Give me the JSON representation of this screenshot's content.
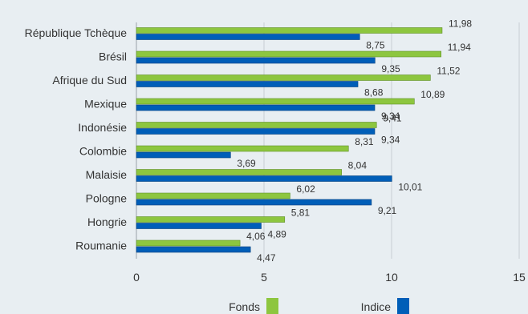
{
  "chart_data": {
    "type": "bar",
    "orientation": "horizontal",
    "title": "",
    "xlabel": "",
    "ylabel": "",
    "xlim": [
      0,
      15
    ],
    "xticks": [
      "0",
      "5",
      "10",
      "15"
    ],
    "grid": "vertical",
    "legend_position": "bottom",
    "categories": [
      "République Tchèque",
      "Brésil",
      "Afrique du Sud",
      "Mexique",
      "Indonésie",
      "Colombie",
      "Malaisie",
      "Pologne",
      "Hongrie",
      "Roumanie"
    ],
    "series": [
      {
        "name": "Fonds",
        "color": "#8dc63f",
        "values": [
          11.98,
          11.94,
          11.52,
          10.89,
          9.41,
          8.31,
          8.04,
          6.02,
          5.81,
          4.06
        ],
        "labels": [
          "11,98",
          "11,94",
          "11,52",
          "10,89",
          "9,41",
          "8,31",
          "8,04",
          "6,02",
          "5,81",
          "4,06"
        ]
      },
      {
        "name": "Indice",
        "color": "#005eb8",
        "values": [
          8.75,
          9.35,
          8.68,
          9.34,
          9.34,
          3.69,
          10.01,
          9.21,
          4.89,
          4.47
        ],
        "labels": [
          "8,75",
          "9,35",
          "8,68",
          "9,34",
          "9,34",
          "3,69",
          "10,01",
          "9,21",
          "4,89",
          "4,47"
        ]
      }
    ]
  }
}
